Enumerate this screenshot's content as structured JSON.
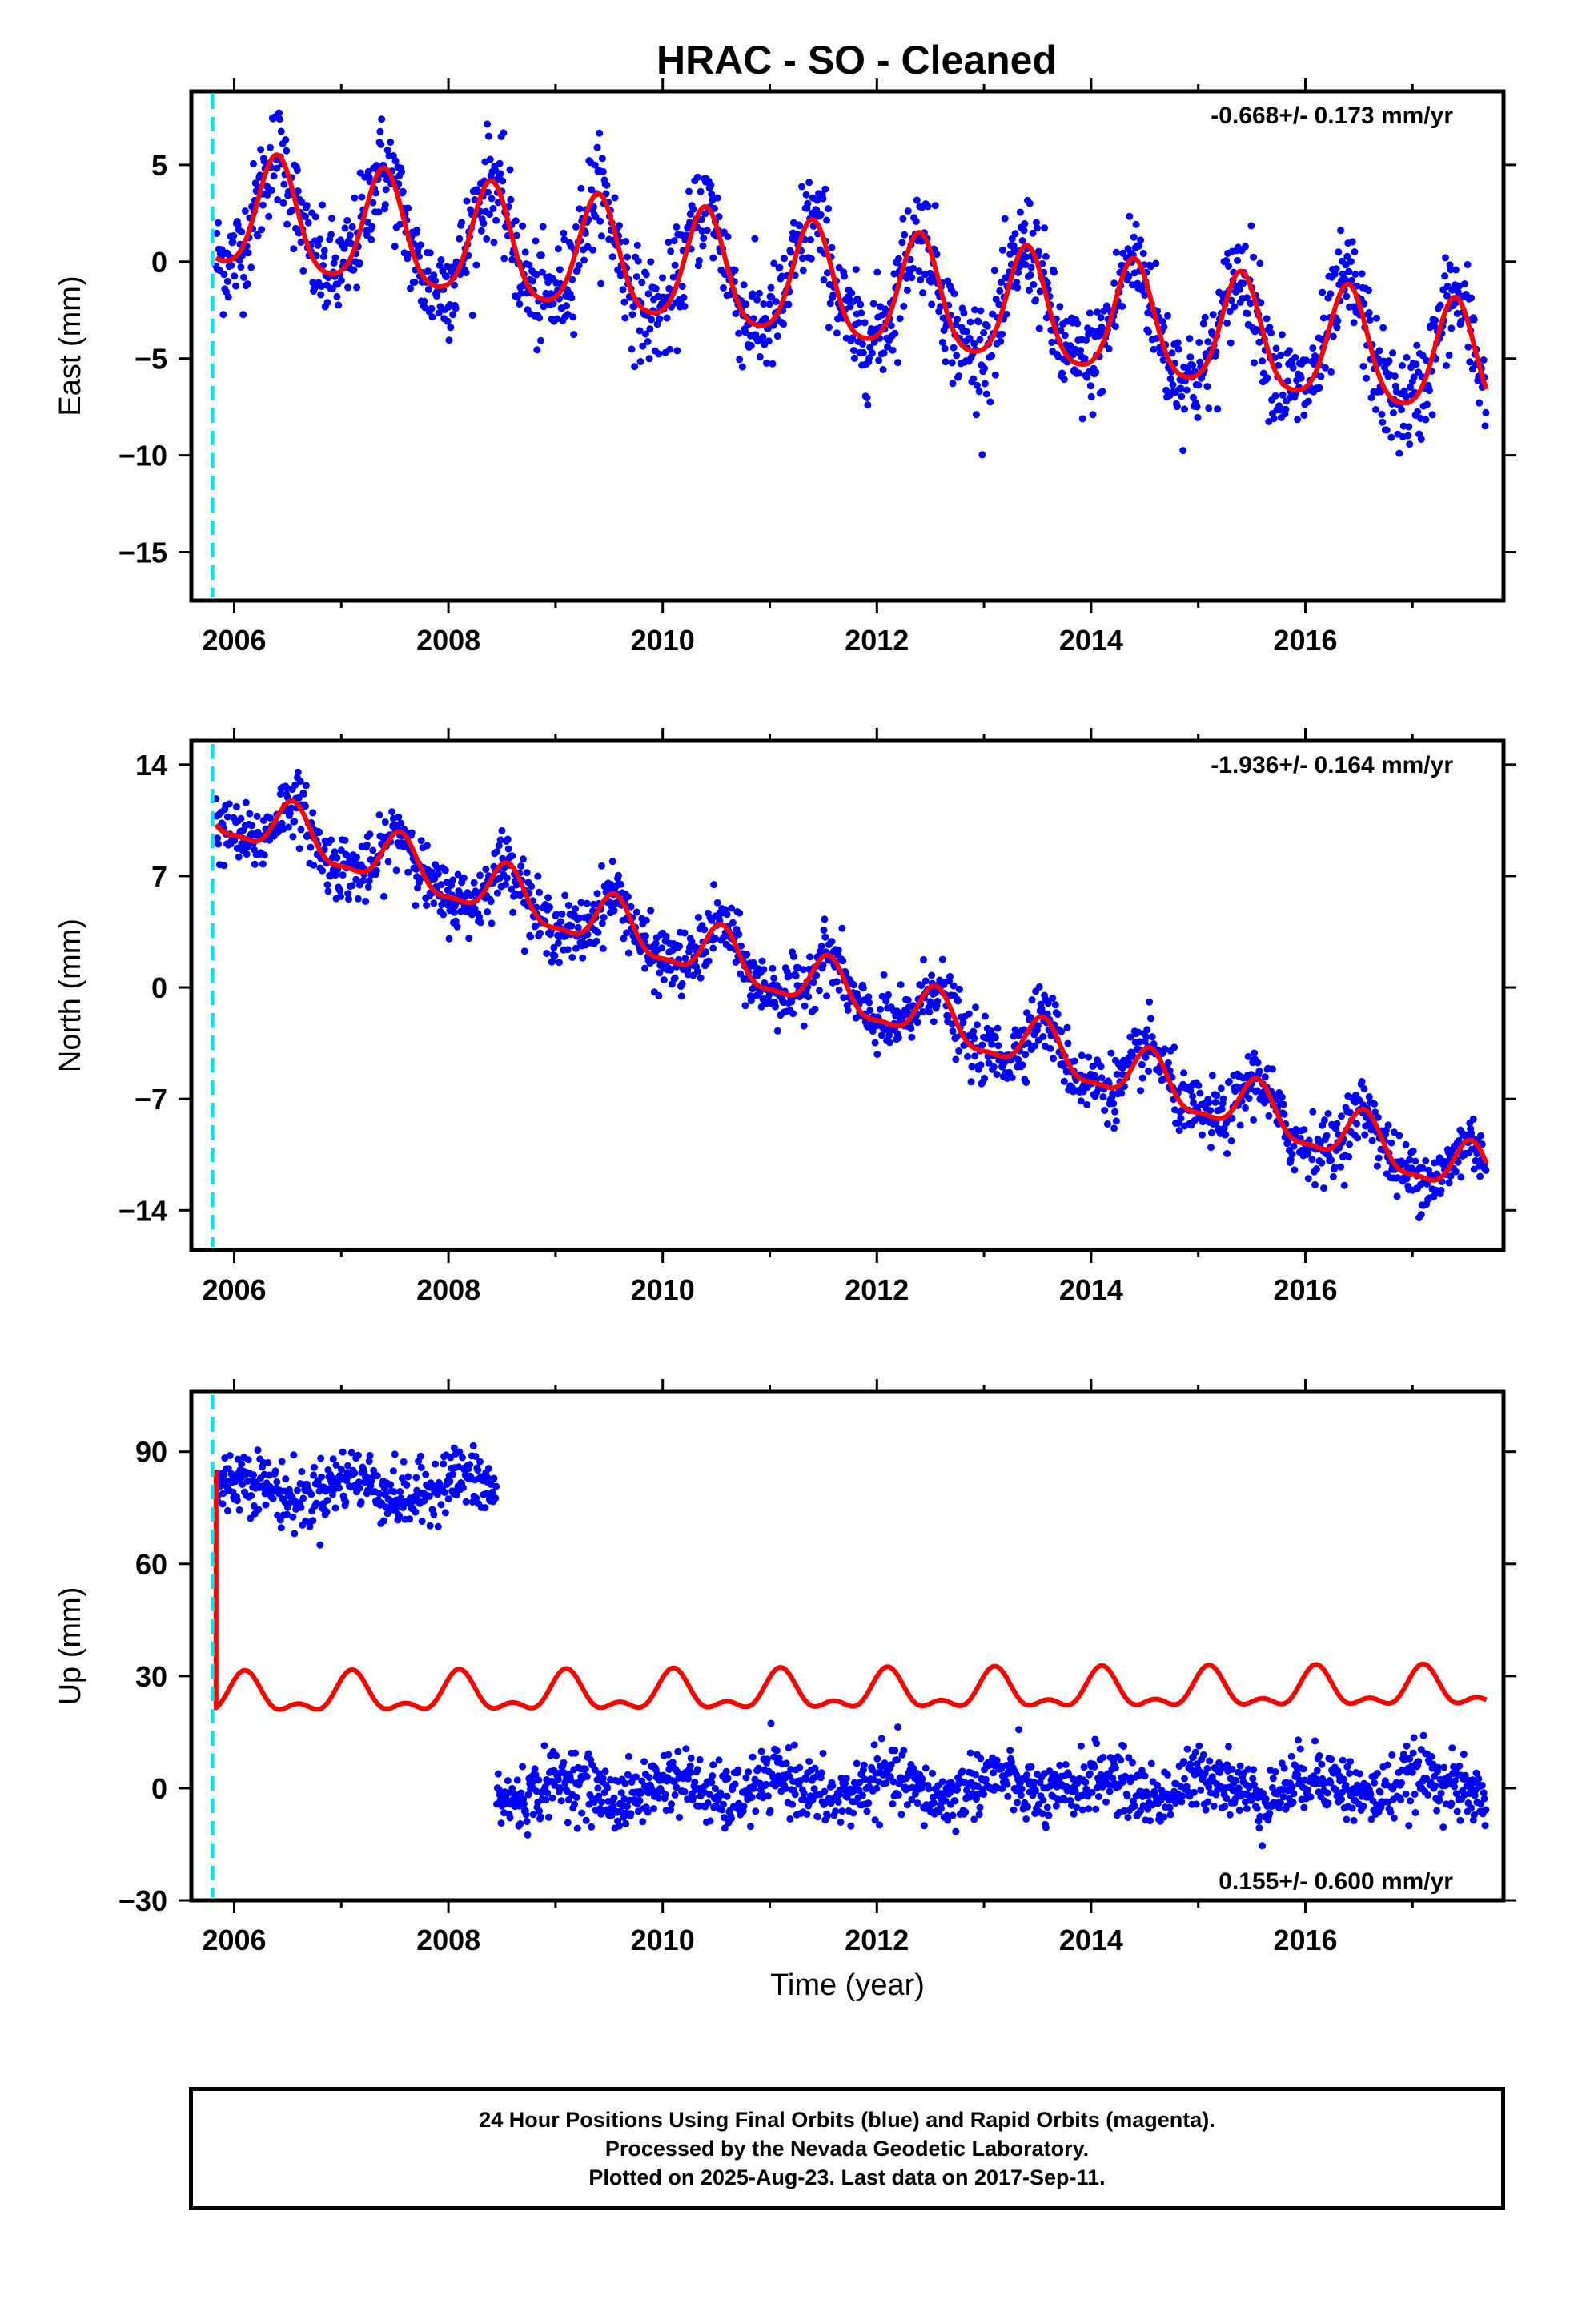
{
  "title": "HRAC  - SO - Cleaned",
  "footer": {
    "line1": "24 Hour Positions Using Final Orbits (blue) and Rapid Orbits (magenta).",
    "line2": "Processed by the Nevada Geodetic Laboratory.",
    "line3": "Plotted on 2025-Aug-23. Last data on 2017-Sep-11."
  },
  "colors": {
    "data": "#0000ff",
    "model": "#ff0000",
    "marker": "#00e5ee",
    "frame": "#000000"
  },
  "chart_data": [
    {
      "type": "scatter",
      "ylabel": "East (mm)",
      "xlabel": "",
      "annotation": "-0.668+/- 0.173 mm/yr",
      "annotation_position": "top-right",
      "x_ticks": [
        2006,
        2008,
        2010,
        2012,
        2014,
        2016
      ],
      "x_tick_labels": [
        "2006",
        "2008",
        "2010",
        "2012",
        "2014",
        "2016"
      ],
      "y_ticks": [
        -15,
        -10,
        -5,
        0,
        5
      ],
      "y_tick_labels": [
        "−15",
        "−10",
        "−5",
        "0",
        "5"
      ],
      "xlim": [
        2005.6,
        2017.85
      ],
      "ylim": [
        -17.5,
        8.8
      ],
      "data_start": 2005.83,
      "data_end": 2017.69,
      "marker_year": 2005.8,
      "trend_mm_per_yr": -0.668,
      "model": {
        "offset": 2.5,
        "annual_amplitude": 2.9,
        "annual_peak": 2006.4,
        "semiannual_amplitude": 0.5,
        "semiannual_peak": 2006.4
      },
      "scatter_sd": 1.35,
      "series": [
        {
          "name": "",
          "kind": "daily positions",
          "color": "#0000ff"
        },
        {
          "name": "",
          "kind": "model fit",
          "color": "#ff0000"
        }
      ]
    },
    {
      "type": "scatter",
      "ylabel": "North (mm)",
      "xlabel": "",
      "annotation": "-1.936+/- 0.164 mm/yr",
      "annotation_position": "top-right",
      "x_ticks": [
        2006,
        2008,
        2010,
        2012,
        2014,
        2016
      ],
      "x_tick_labels": [
        "2006",
        "2008",
        "2010",
        "2012",
        "2014",
        "2016"
      ],
      "y_ticks": [
        -14,
        -7,
        0,
        7,
        14
      ],
      "y_tick_labels": [
        "−14",
        "−7",
        "0",
        "7",
        "14"
      ],
      "xlim": [
        2005.6,
        2017.85
      ],
      "ylim": [
        -16.5,
        15.5
      ],
      "data_start": 2005.83,
      "data_end": 2017.69,
      "marker_year": 2005.8,
      "trend_mm_per_yr": -1.936,
      "model": {
        "offset": 11.0,
        "annual_amplitude": 1.6,
        "annual_peak": 2006.55,
        "semiannual_amplitude": 0.5,
        "semiannual_peak": 2006.55
      },
      "scatter_sd": 1.0,
      "series": [
        {
          "name": "",
          "kind": "daily positions",
          "color": "#0000ff"
        },
        {
          "name": "",
          "kind": "model fit",
          "color": "#ff0000"
        }
      ]
    },
    {
      "type": "scatter",
      "ylabel": "Up (mm)",
      "xlabel": "Time (year)",
      "annotation": "0.155+/- 0.600 mm/yr",
      "annotation_position": "bottom-right",
      "x_ticks": [
        2006,
        2008,
        2010,
        2012,
        2014,
        2016
      ],
      "x_tick_labels": [
        "2006",
        "2008",
        "2010",
        "2012",
        "2014",
        "2016"
      ],
      "y_ticks": [
        -30,
        0,
        30,
        60,
        90
      ],
      "y_tick_labels": [
        "−30",
        "0",
        "30",
        "60",
        "90"
      ],
      "xlim": [
        2005.6,
        2017.85
      ],
      "ylim": [
        -30,
        106
      ],
      "data_start": 2005.83,
      "data_end": 2017.69,
      "marker_year": 2005.8,
      "trend_mm_per_yr": 0.155,
      "step": {
        "year": 2008.45,
        "before": 80,
        "after": -1
      },
      "model": {
        "offset": 24.5,
        "start_value": 85,
        "annual_amplitude": 4.5,
        "annual_peak": 2006.1,
        "semiannual_amplitude": 2.5,
        "semiannual_peak": 2006.1
      },
      "scatter_sd": 4.2,
      "series": [
        {
          "name": "",
          "kind": "daily positions",
          "color": "#0000ff"
        },
        {
          "name": "",
          "kind": "model fit",
          "color": "#ff0000"
        }
      ]
    }
  ]
}
